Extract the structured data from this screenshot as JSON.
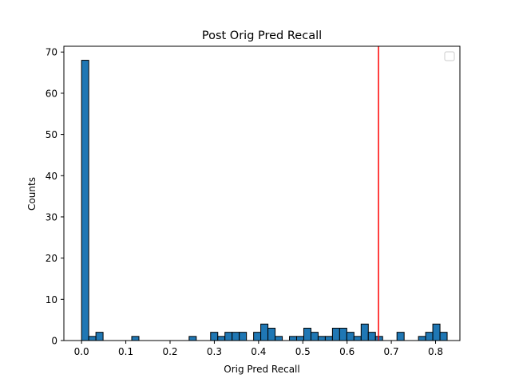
{
  "chart_data": {
    "type": "bar",
    "title": "Post Orig Pred Recall",
    "xlabel": "Orig Pred Recall",
    "ylabel": "Counts",
    "xlim": [
      -0.04,
      0.855
    ],
    "ylim": [
      0,
      71.4
    ],
    "xticks": [
      0.0,
      0.1,
      0.2,
      0.3,
      0.4,
      0.5,
      0.6,
      0.7,
      0.8
    ],
    "xtick_labels": [
      "0.0",
      "0.1",
      "0.2",
      "0.3",
      "0.4",
      "0.5",
      "0.6",
      "0.7",
      "0.8"
    ],
    "yticks": [
      0,
      10,
      20,
      30,
      40,
      50,
      60,
      70
    ],
    "ytick_labels": [
      "0",
      "10",
      "20",
      "30",
      "40",
      "50",
      "60",
      "70"
    ],
    "bin_start": 0.0,
    "bin_width": 0.0162,
    "counts": [
      68,
      1,
      2,
      0,
      0,
      0,
      0,
      1,
      0,
      0,
      0,
      0,
      0,
      0,
      0,
      1,
      0,
      0,
      2,
      1,
      2,
      2,
      2,
      0,
      2,
      4,
      3,
      1,
      0,
      1,
      1,
      3,
      2,
      1,
      1,
      3,
      3,
      2,
      1,
      4,
      2,
      1,
      0,
      0,
      2,
      0,
      0,
      1,
      2,
      4,
      2
    ],
    "bar_color": "#1f77b4",
    "bar_edge_color": "#000000",
    "vline": {
      "x": 0.671,
      "color": "#ff0000"
    },
    "legend": {
      "placement": "top-right",
      "entries": []
    },
    "grid": false
  }
}
